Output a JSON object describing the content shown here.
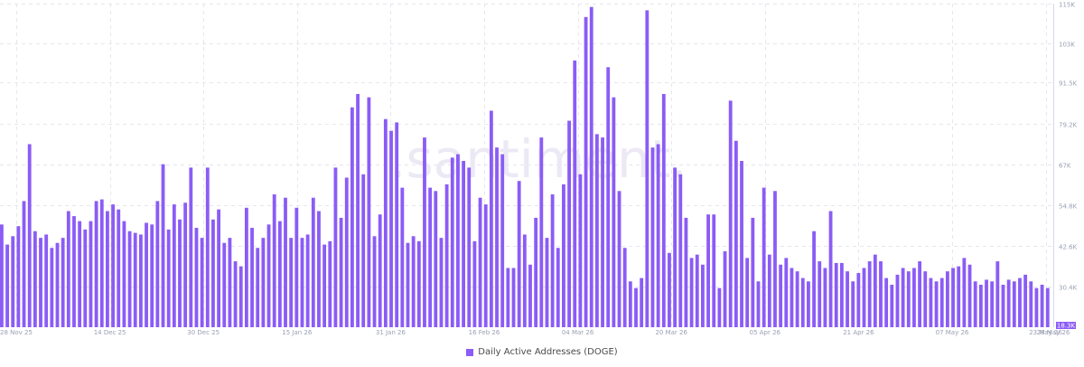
{
  "watermark": ".santiment.",
  "colors": {
    "bar": "#8b5cf6",
    "grid": "#e6e6ee",
    "axis_text": "#9aa0b4",
    "badge": "#8b5cf6"
  },
  "chart_data": {
    "type": "bar",
    "series": [
      {
        "name": "Daily Active Addresses (DOGE)",
        "values": [
          49000,
          43000,
          45500,
          48500,
          56000,
          73000,
          47000,
          45000,
          46000,
          42000,
          43500,
          45000,
          53000,
          51500,
          50000,
          47500,
          50000,
          56000,
          56500,
          53000,
          55000,
          53500,
          50000,
          47000,
          46500,
          46000,
          49500,
          49000,
          56000,
          67000,
          47500,
          55000,
          50500,
          55500,
          66000,
          48000,
          45000,
          66000,
          50500,
          53500,
          43500,
          45000,
          38000,
          36500,
          54000,
          48000,
          42000,
          45000,
          49000,
          58000,
          50000,
          57000,
          45000,
          54000,
          45000,
          46000,
          57000,
          53000,
          43000,
          44000,
          66000,
          51000,
          63000,
          84000,
          88000,
          64000,
          87000,
          45500,
          52000,
          80500,
          77000,
          79500,
          60000,
          43500,
          45500,
          44000,
          75000,
          60000,
          59000,
          45000,
          61000,
          69000,
          70000,
          68000,
          66000,
          44000,
          57000,
          55000,
          83000,
          72000,
          70000,
          36000,
          36000,
          62000,
          46000,
          37000,
          51000,
          75000,
          45000,
          58000,
          42000,
          61000,
          80000,
          98000,
          64000,
          111000,
          114000,
          76000,
          75000,
          96000,
          87000,
          59000,
          42000,
          32000,
          30000,
          33000,
          113000,
          72000,
          73000,
          88000,
          40500,
          66000,
          64000,
          51000,
          39000,
          40000,
          37000,
          52000,
          52000,
          30000,
          41000,
          86000,
          74000,
          68000,
          39000,
          51000,
          32000,
          60000,
          40000,
          59000,
          37000,
          39000,
          36000,
          35000,
          33000,
          32000,
          47000,
          38000,
          36000,
          53000,
          37500,
          37500,
          35000,
          32000,
          34500,
          36000,
          38000,
          40000,
          38000,
          33000,
          31000,
          34000,
          36000,
          35000,
          36000,
          38000,
          35000,
          33000,
          32000,
          33000,
          35000,
          36000,
          36500,
          39000,
          37000,
          32000,
          31000,
          32500,
          32000,
          38000,
          31000,
          32500,
          32000,
          33000,
          34000,
          32000,
          30000,
          31000,
          30000
        ]
      }
    ],
    "x_tick_labels": [
      "28 Nov 25",
      "14 Dec 25",
      "30 Dec 25",
      "15 Jan 26",
      "31 Jan 26",
      "16 Feb 26",
      "04 Mar 26",
      "20 Mar 26",
      "05 Apr 26",
      "21 Apr 26",
      "07 May 26",
      "23 May 26",
      "28 May 26"
    ],
    "y_ticks": [
      "115K",
      "103K",
      "91.5K",
      "79.2K",
      "67K",
      "54.8K",
      "42.6K",
      "30.4K"
    ],
    "y_tick_values": [
      115000,
      103000,
      91500,
      79200,
      67000,
      54800,
      42600,
      30400
    ],
    "y_min_badge": "18.3K",
    "ylim": [
      18300,
      115000
    ],
    "grid": true,
    "legend": {
      "position": "bottom-center",
      "label": "Daily Active Addresses (DOGE)"
    }
  }
}
